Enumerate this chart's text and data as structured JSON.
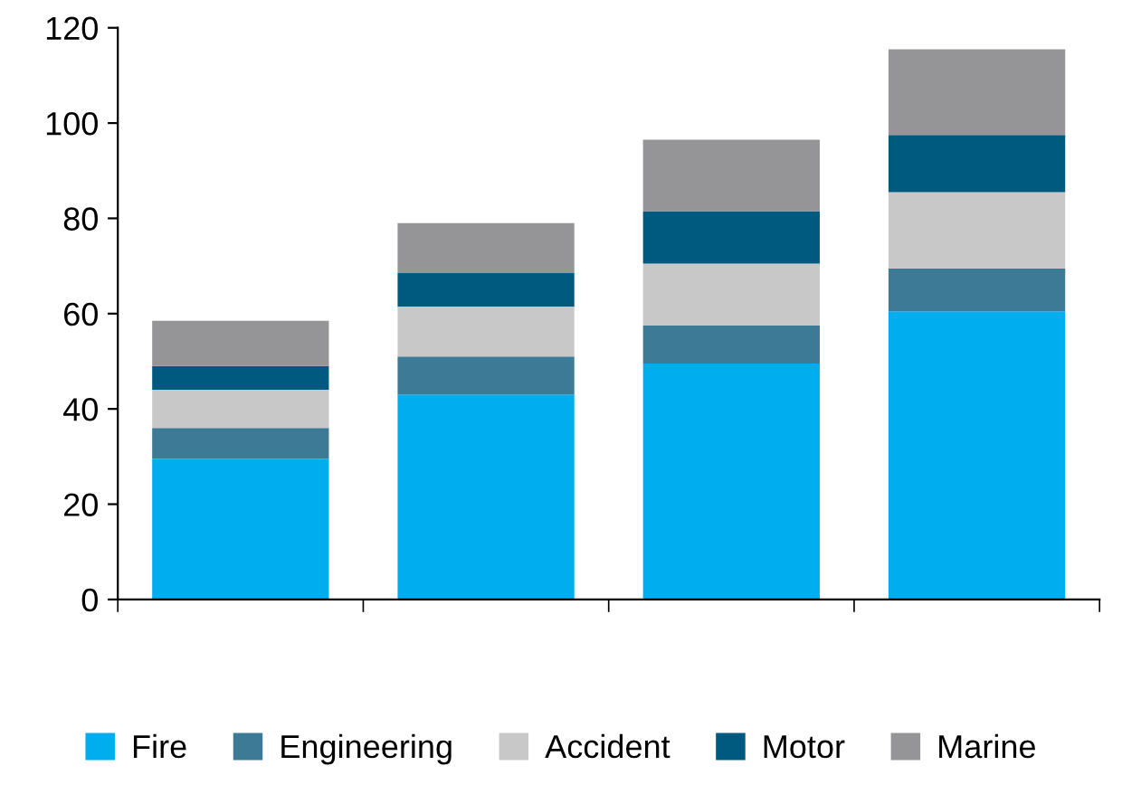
{
  "chart_data": {
    "type": "bar",
    "stacked": true,
    "categories": [
      null,
      null,
      null,
      null
    ],
    "series": [
      {
        "name": "Fire",
        "color": "#00aeef",
        "values": [
          29.5,
          43,
          49.5,
          60.5
        ]
      },
      {
        "name": "Engineering",
        "color": "#3c7a96",
        "values": [
          6.5,
          8,
          8,
          9
        ]
      },
      {
        "name": "Accident",
        "color": "#c8c8c8",
        "values": [
          8,
          10.5,
          13,
          16
        ]
      },
      {
        "name": "Motor",
        "color": "#005a80",
        "values": [
          5,
          7,
          11,
          12
        ]
      },
      {
        "name": "Marine",
        "color": "#959598",
        "values": [
          9.5,
          10.5,
          15,
          18
        ]
      }
    ],
    "ylim": [
      0,
      120
    ],
    "yticks": [
      0,
      20,
      40,
      60,
      80,
      100,
      120
    ],
    "grid": false,
    "legend": "bottom"
  }
}
